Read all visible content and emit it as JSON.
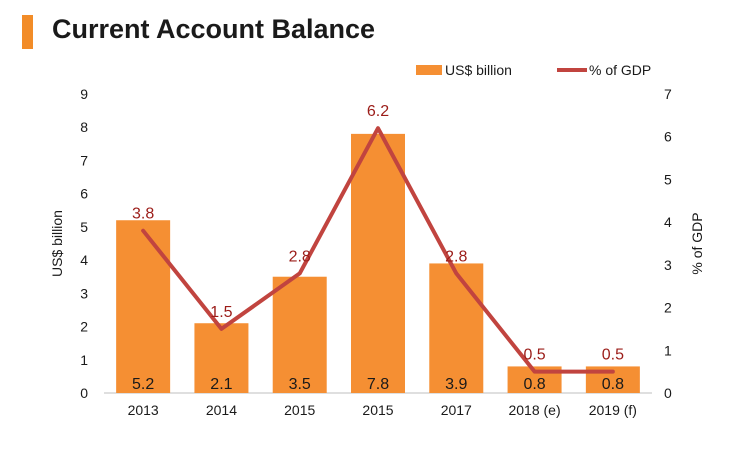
{
  "title": "Current Account Balance",
  "colors": {
    "title_accent": "#f28c28",
    "bar": "#f58f33",
    "line": "#c1443f",
    "line_label": "#9b1c18",
    "bar_label": "#1a1a1a",
    "axis_text": "#1a1a1a",
    "axis_line": "#bfbfbf"
  },
  "chart_data": {
    "type": "bar+line",
    "title": "Current Account Balance",
    "categories": [
      "2013",
      "2014",
      "2015",
      "2015",
      "2017",
      "2018 (e)",
      "2019 (f)"
    ],
    "series": [
      {
        "name": "US$ billion",
        "type": "bar",
        "axis": "left",
        "values": [
          5.2,
          2.1,
          3.5,
          7.8,
          3.9,
          0.8,
          0.8
        ],
        "labels": [
          "5.2",
          "2.1",
          "3.5",
          "7.8",
          "3.9",
          "0.8",
          "0.8"
        ]
      },
      {
        "name": "% of GDP",
        "type": "line",
        "axis": "right",
        "values": [
          3.8,
          1.5,
          2.8,
          6.2,
          2.8,
          0.5,
          0.5
        ],
        "labels": [
          "3.8",
          "1.5",
          "2.8",
          "6.2",
          "2.8",
          "0.5",
          "0.5"
        ]
      }
    ],
    "y_left": {
      "label": "US$  billion",
      "range": [
        0,
        9
      ],
      "ticks": [
        "0",
        "1",
        "2",
        "3",
        "4",
        "5",
        "6",
        "7",
        "8",
        "9"
      ]
    },
    "y_right": {
      "label": "% of GDP",
      "range": [
        0,
        7
      ],
      "ticks": [
        "0",
        "1",
        "2",
        "3",
        "4",
        "5",
        "6",
        "7"
      ]
    },
    "grid": false,
    "legend_position": "top-right"
  }
}
